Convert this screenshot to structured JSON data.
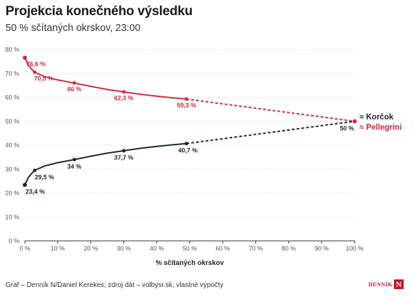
{
  "title": "Projekcia konečného výsledku",
  "subtitle": "50 % sčítaných okrskov, 23:00",
  "footer": "Graf – Denník N/Daniel Kerekes; zdroj dát – volbysr.sk, vlastné výpočty",
  "logo": {
    "text": "DENNÍK",
    "mark": "N"
  },
  "colors": {
    "red": "#d7263d",
    "navy": "#1b2536",
    "grid": "#cccccc",
    "axis": "#333333"
  },
  "chart_data": {
    "type": "line",
    "xlabel": "% sčítaných okrskov",
    "ylabel": "",
    "xlim": [
      0,
      100
    ],
    "ylim": [
      0,
      80
    ],
    "x_ticks": [
      0,
      10,
      20,
      30,
      40,
      50,
      60,
      70,
      80,
      90,
      100
    ],
    "y_ticks": [
      0,
      10,
      20,
      30,
      40,
      50,
      60,
      70,
      80
    ],
    "tick_suffix": " %",
    "grid": "horizontal dotted",
    "series": [
      {
        "name": "≈ Pellegrini",
        "color": "#d7263d",
        "solid_curve": [
          [
            0,
            76.6
          ],
          [
            1,
            73.6
          ],
          [
            2,
            71.9
          ],
          [
            3,
            70.5
          ],
          [
            6,
            68.7
          ],
          [
            10,
            67.3
          ],
          [
            15,
            66
          ],
          [
            20,
            64.6
          ],
          [
            25,
            63.3
          ],
          [
            30,
            62.3
          ],
          [
            35,
            61.3
          ],
          [
            40,
            60.5
          ],
          [
            45,
            59.8
          ],
          [
            49,
            59.3
          ]
        ],
        "projection": [
          [
            49,
            59.3
          ],
          [
            100,
            50
          ]
        ],
        "points": [
          {
            "x": 0,
            "y": 76.6,
            "label": "76,6 %"
          },
          {
            "x": 3,
            "y": 70.5,
            "label": "70,5 %"
          },
          {
            "x": 15,
            "y": 66,
            "label": "66 %"
          },
          {
            "x": 30,
            "y": 62.3,
            "label": "62,3 %"
          },
          {
            "x": 49,
            "y": 59.3,
            "label": "59,3 %"
          }
        ]
      },
      {
        "name": "≈ Korčok",
        "color": "#1b2536",
        "solid_curve": [
          [
            0,
            23.4
          ],
          [
            1,
            26.4
          ],
          [
            2,
            28.1
          ],
          [
            3,
            29.5
          ],
          [
            6,
            31.3
          ],
          [
            10,
            32.7
          ],
          [
            15,
            34
          ],
          [
            20,
            35.4
          ],
          [
            25,
            36.7
          ],
          [
            30,
            37.7
          ],
          [
            35,
            38.7
          ],
          [
            40,
            39.5
          ],
          [
            45,
            40.2
          ],
          [
            49,
            40.7
          ]
        ],
        "projection": [
          [
            49,
            40.7
          ],
          [
            100,
            50
          ]
        ],
        "points": [
          {
            "x": 0,
            "y": 23.4,
            "label": "23,4 %"
          },
          {
            "x": 3,
            "y": 29.5,
            "label": "29,5 %"
          },
          {
            "x": 15,
            "y": 34,
            "label": "34 %"
          },
          {
            "x": 30,
            "y": 37.7,
            "label": "37,7 %"
          },
          {
            "x": 49,
            "y": 40.7,
            "label": "40,7 %"
          }
        ]
      }
    ],
    "end_point": {
      "x": 100,
      "y": 50,
      "label": "50 %"
    }
  }
}
